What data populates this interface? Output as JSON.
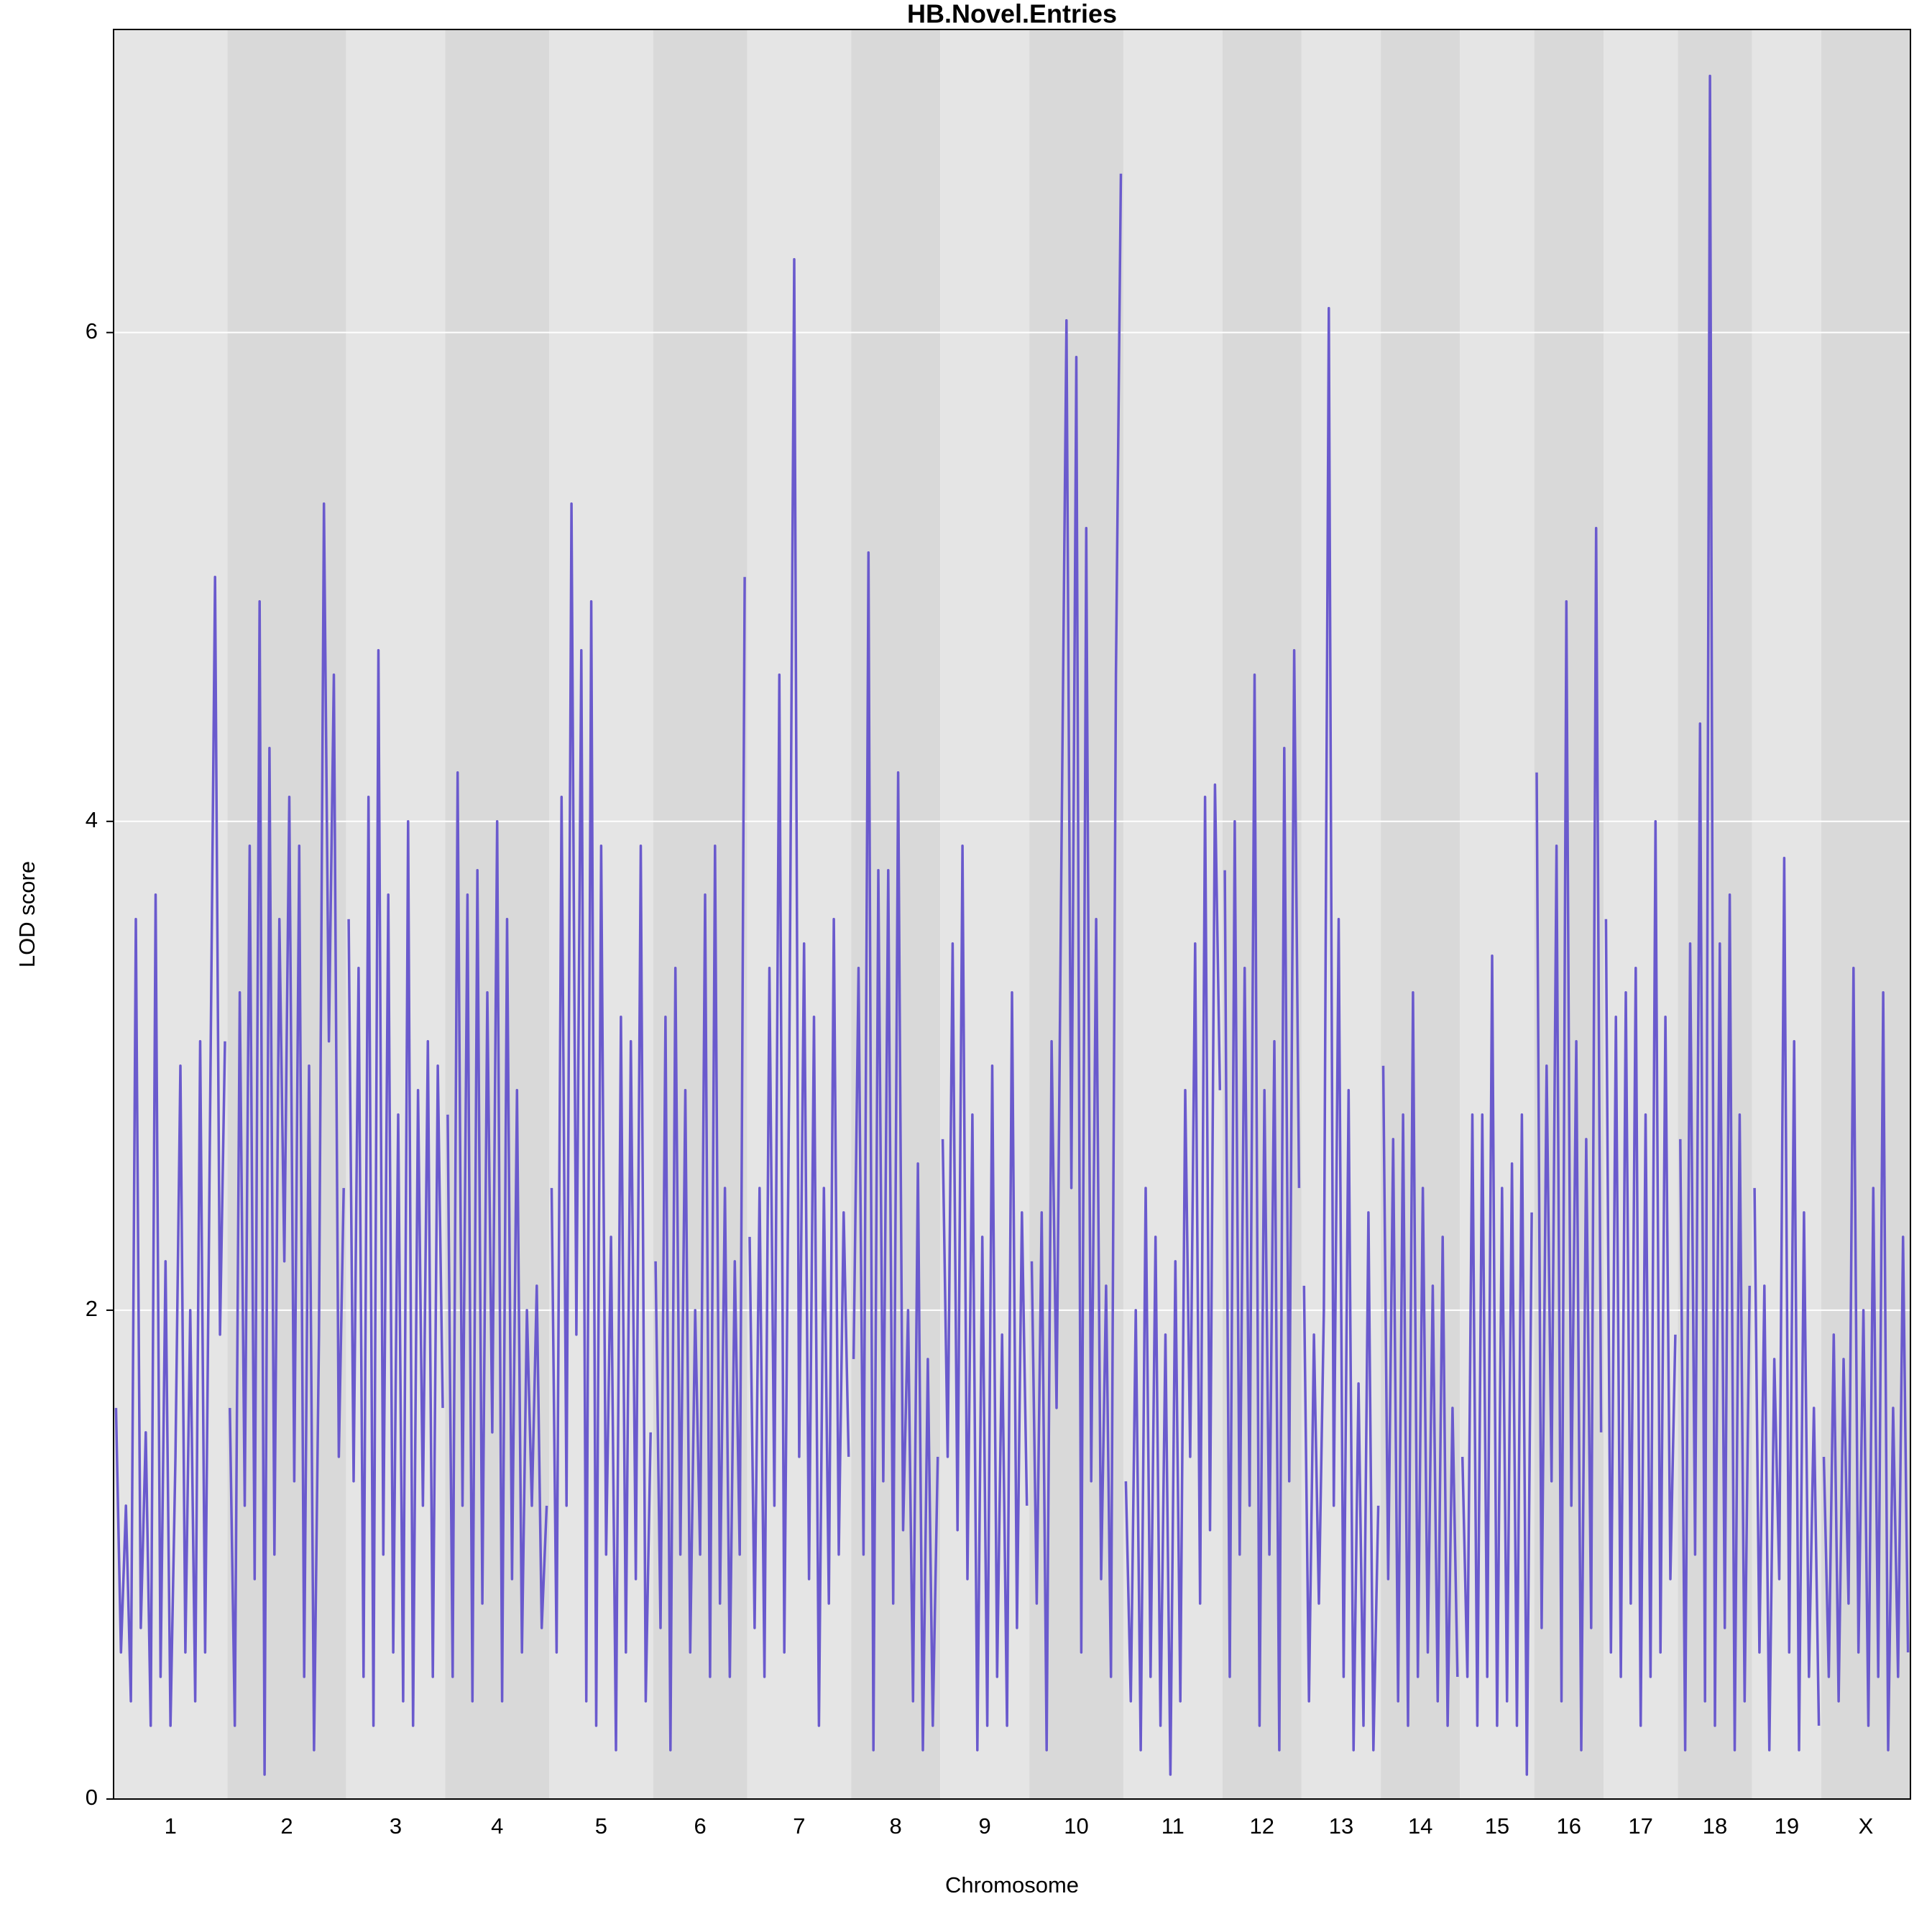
{
  "chart_data": {
    "type": "lod",
    "title": "HB.Novel.Entries",
    "x_label": "Chromosome",
    "y_label": "LOD score",
    "color": "#6a5acd",
    "band_colors": [
      "#e5e5e5",
      "#d9d9d9"
    ],
    "ylim": [
      0,
      7.24
    ],
    "yticks": [
      0,
      2,
      4,
      6
    ],
    "grid": true,
    "chromosomes": [
      {
        "name": "1",
        "values": [
          1.6,
          0.6,
          1.2,
          0.4,
          3.6,
          0.7,
          1.5,
          0.3,
          3.7,
          0.5,
          2.2,
          0.3,
          1.4,
          3.0,
          0.6,
          2.0,
          0.4,
          3.1,
          0.6,
          2.8,
          5.0,
          1.9,
          3.1
        ]
      },
      {
        "name": "2",
        "values": [
          1.6,
          0.3,
          3.3,
          1.2,
          3.9,
          0.9,
          4.9,
          0.1,
          4.3,
          1.0,
          3.6,
          2.2,
          4.1,
          1.3,
          3.9,
          0.5,
          3.0,
          0.2,
          1.9,
          5.3,
          3.1,
          4.6,
          1.4,
          2.5
        ]
      },
      {
        "name": "3",
        "values": [
          3.6,
          1.3,
          3.4,
          0.5,
          4.1,
          0.3,
          4.7,
          1.0,
          3.7,
          0.6,
          2.8,
          0.4,
          4.0,
          0.3,
          2.9,
          1.2,
          3.1,
          0.5,
          3.0,
          1.6
        ]
      },
      {
        "name": "4",
        "values": [
          2.8,
          0.5,
          4.2,
          1.2,
          3.7,
          0.4,
          3.8,
          0.8,
          3.3,
          1.5,
          4.0,
          0.4,
          3.6,
          0.9,
          2.9,
          0.6,
          2.0,
          1.2,
          2.1,
          0.7,
          1.2
        ]
      },
      {
        "name": "5",
        "values": [
          2.5,
          0.6,
          4.1,
          1.2,
          5.3,
          1.9,
          4.7,
          0.4,
          4.9,
          0.3,
          3.9,
          1.0,
          2.3,
          0.2,
          3.2,
          0.6,
          3.1,
          0.9,
          3.9,
          0.4,
          1.5
        ]
      },
      {
        "name": "6",
        "values": [
          2.2,
          0.7,
          3.2,
          0.2,
          3.4,
          1.0,
          2.9,
          0.6,
          2.0,
          1.0,
          3.7,
          0.5,
          3.9,
          0.8,
          2.5,
          0.5,
          2.2,
          1.0,
          5.0
        ]
      },
      {
        "name": "7",
        "values": [
          2.3,
          0.7,
          2.5,
          0.5,
          3.4,
          1.2,
          4.6,
          0.6,
          3.0,
          6.3,
          1.4,
          3.5,
          0.9,
          3.2,
          0.3,
          2.5,
          0.8,
          3.6,
          1.0,
          2.4,
          1.4
        ]
      },
      {
        "name": "8",
        "values": [
          1.8,
          3.4,
          1.0,
          5.1,
          0.2,
          3.8,
          1.3,
          3.8,
          0.8,
          4.2,
          1.1,
          2.0,
          0.4,
          2.6,
          0.2,
          1.8,
          0.3,
          1.4
        ]
      },
      {
        "name": "9",
        "values": [
          2.7,
          1.4,
          3.5,
          1.1,
          3.9,
          0.9,
          2.8,
          0.2,
          2.3,
          0.3,
          3.0,
          0.5,
          1.9,
          0.3,
          3.3,
          0.7,
          2.4,
          1.2
        ]
      },
      {
        "name": "10",
        "values": [
          2.2,
          0.8,
          2.4,
          0.2,
          3.1,
          1.6,
          3.9,
          6.05,
          2.5,
          5.9,
          0.6,
          5.2,
          1.3,
          3.6,
          0.9,
          2.1,
          0.5,
          4.6,
          6.65
        ]
      },
      {
        "name": "11",
        "values": [
          1.3,
          0.4,
          2.0,
          0.2,
          2.5,
          0.5,
          2.3,
          0.3,
          1.9,
          0.1,
          2.2,
          0.4,
          2.9,
          1.4,
          3.5,
          0.8,
          4.1,
          1.1,
          4.15,
          2.9
        ]
      },
      {
        "name": "12",
        "values": [
          3.8,
          0.5,
          4.0,
          1.0,
          3.4,
          1.2,
          4.6,
          0.3,
          2.9,
          1.0,
          3.1,
          0.2,
          4.3,
          1.3,
          4.7,
          2.5
        ]
      },
      {
        "name": "13",
        "values": [
          2.1,
          0.4,
          1.9,
          0.8,
          2.0,
          6.1,
          1.2,
          3.6,
          0.5,
          2.9,
          0.2,
          1.7,
          0.3,
          2.4,
          0.2,
          1.2
        ]
      },
      {
        "name": "14",
        "values": [
          3.0,
          0.9,
          2.7,
          0.4,
          2.8,
          0.3,
          3.3,
          0.5,
          2.5,
          0.6,
          2.1,
          0.4,
          2.3,
          0.3,
          1.6,
          0.5
        ]
      },
      {
        "name": "15",
        "values": [
          1.4,
          0.5,
          2.8,
          0.3,
          2.8,
          0.5,
          3.45,
          0.3,
          2.5,
          0.4,
          2.6,
          0.3,
          2.8,
          0.1,
          2.4
        ]
      },
      {
        "name": "16",
        "values": [
          4.2,
          0.7,
          3.0,
          1.3,
          3.9,
          0.4,
          4.9,
          1.2,
          3.1,
          0.2,
          2.7,
          0.7,
          5.2,
          1.5
        ]
      },
      {
        "name": "17",
        "values": [
          3.6,
          0.6,
          3.2,
          0.5,
          3.3,
          0.8,
          3.4,
          0.3,
          2.8,
          0.5,
          4.0,
          0.6,
          3.2,
          0.9,
          1.9
        ]
      },
      {
        "name": "18",
        "values": [
          2.7,
          0.2,
          3.5,
          1.0,
          4.4,
          0.4,
          7.05,
          0.3,
          3.5,
          0.7,
          3.7,
          0.2,
          2.8,
          0.4,
          2.1
        ]
      },
      {
        "name": "19",
        "values": [
          2.5,
          0.6,
          2.1,
          0.2,
          1.8,
          0.9,
          3.85,
          0.6,
          3.1,
          0.2,
          2.4,
          0.5,
          1.6,
          0.3
        ]
      },
      {
        "name": "X",
        "values": [
          1.4,
          0.5,
          1.9,
          0.4,
          1.8,
          0.8,
          3.4,
          0.6,
          2.0,
          0.3,
          2.5,
          0.5,
          3.3,
          0.2,
          1.6,
          0.5,
          2.3,
          0.6
        ]
      }
    ]
  }
}
